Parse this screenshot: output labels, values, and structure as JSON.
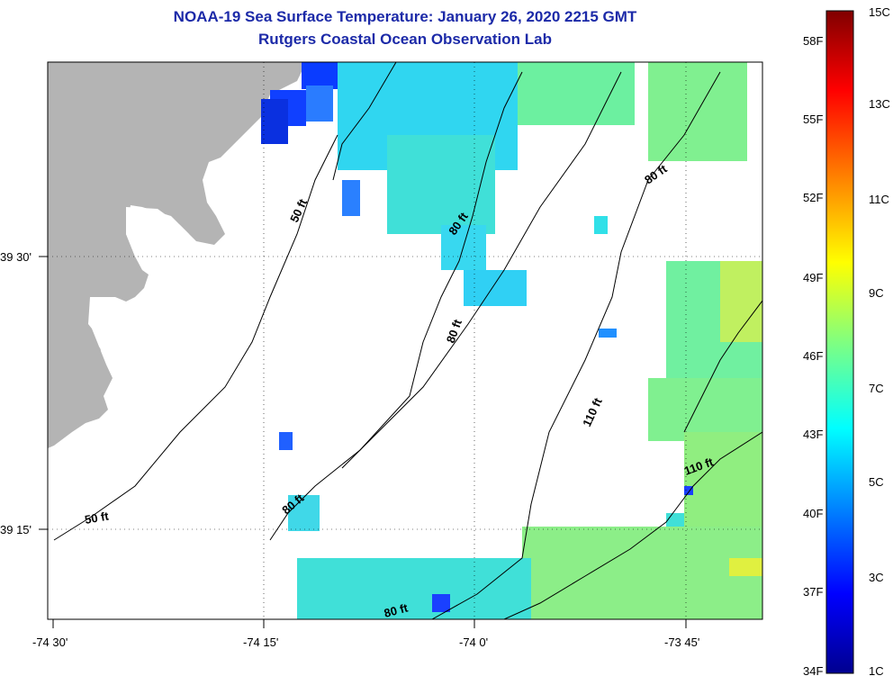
{
  "title": "NOAA-19 Sea Surface Temperature:  January 26, 2020 2215 GMT",
  "subtitle": "Rutgers Coastal Ocean Observation Lab",
  "x_ticks": [
    "-74 30'",
    "-74 15'",
    "-74 0'",
    "-73 45'"
  ],
  "y_ticks": [
    "39 30'",
    "39 15'"
  ],
  "contour_labels": [
    "50 ft",
    "50 ft",
    "80 ft",
    "80 ft",
    "80 ft",
    "80 ft",
    "80 ft",
    "110 ft",
    "110 ft"
  ],
  "colorbar": {
    "fahrenheit": [
      "58F",
      "55F",
      "52F",
      "49F",
      "46F",
      "43F",
      "40F",
      "37F",
      "34F"
    ],
    "celsius": [
      "15C",
      "13C",
      "11C",
      "9C",
      "7C",
      "5C",
      "3C",
      "1C"
    ],
    "colors": [
      "#00008f",
      "#0000ff",
      "#0080ff",
      "#00ffff",
      "#80ff80",
      "#ffff00",
      "#ff8000",
      "#ff0000",
      "#800000"
    ]
  },
  "colors": {
    "land": "#b4b4b4",
    "title": "#1c2aa8"
  }
}
